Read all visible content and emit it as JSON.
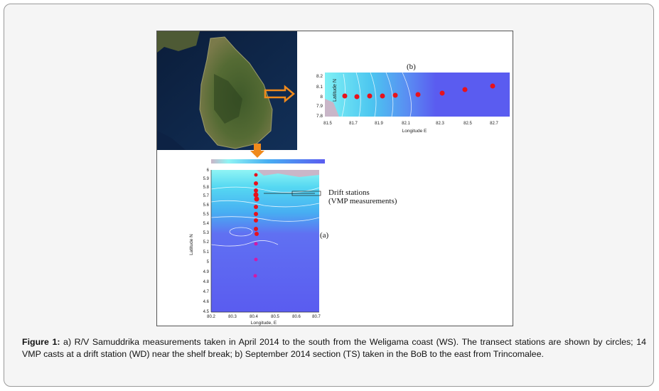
{
  "figure": {
    "panel_b": {
      "label": "(b)",
      "ylabel": "Latitude N",
      "xlabel": "Longitude E",
      "yticks": [
        "8.2",
        "8.1",
        "8",
        "7.9",
        "7.8"
      ],
      "xticks": [
        "81.5",
        "81.7",
        "81.9",
        "82.1",
        "82.3",
        "82.5",
        "82.7"
      ]
    },
    "panel_a": {
      "label": "(a)",
      "ylabel": "Latitude N",
      "xlabel": "Longitude, E",
      "yticks": [
        "6",
        "5.9",
        "5.8",
        "5.7",
        "5.6",
        "5.5",
        "5.4",
        "5.3",
        "5.2",
        "5.1",
        "5",
        "4.9",
        "4.8",
        "4.7",
        "4.6",
        "4.5"
      ],
      "xticks": [
        "80.2",
        "80.3",
        "80.4",
        "80.5",
        "80.6",
        "80.7"
      ]
    },
    "annotation_line1": "Drift stations",
    "annotation_line2": "(VMP measurements)",
    "colors": {
      "deep_ocean": "#5a5cf0",
      "shelf_cyan": "#5fe3f0",
      "station_red": "#e8121c",
      "arrow_orange": "#f08a1c"
    }
  },
  "caption": {
    "label": "Figure 1:",
    "text": " a) R/V Samuddrika measurements taken in April 2014 to the south from the Weligama coast (WS). The transect stations are shown by circles; 14 VMP casts at a drift station (WD) near the shelf break; b) September 2014 section (TS) taken in the BoB to the east from Trincomalee."
  }
}
